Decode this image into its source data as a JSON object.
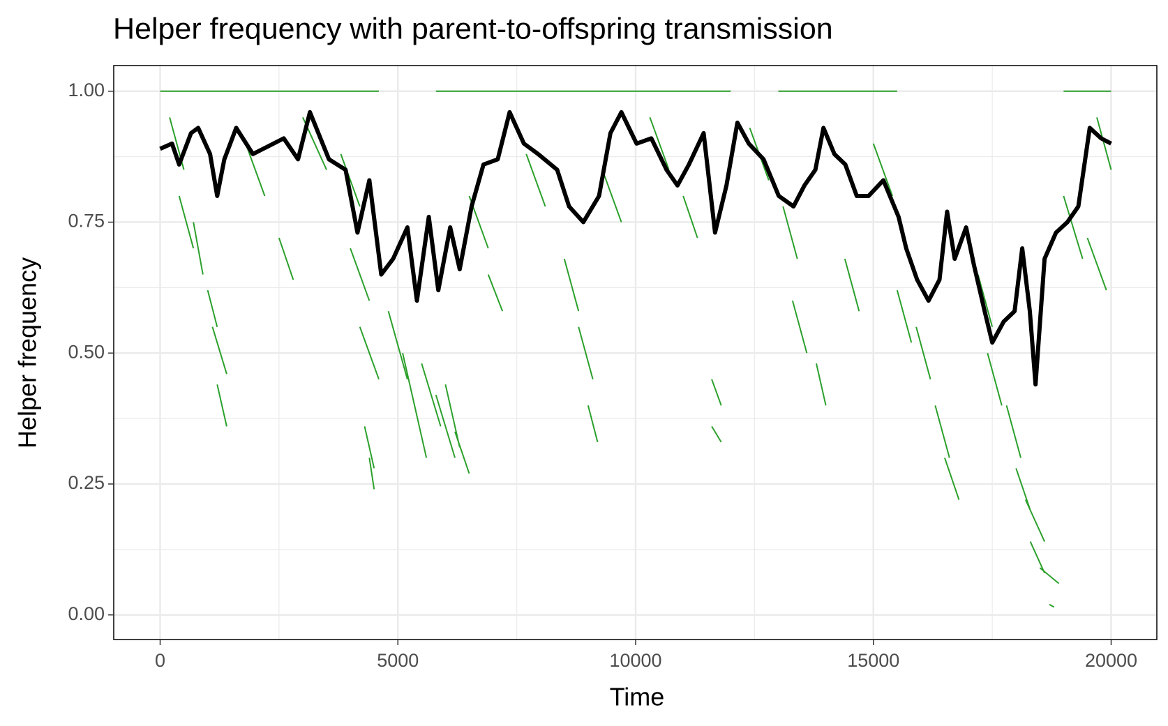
{
  "chart_data": {
    "type": "line",
    "title": "Helper frequency with parent-to-offspring transmission",
    "x_label": "Time",
    "y_label": "Helper frequency",
    "xlim": [
      -976,
      20961
    ],
    "ylim": [
      -0.047,
      1.049
    ],
    "xticks": [
      0,
      5000,
      10000,
      15000,
      20000
    ],
    "yticks": [
      {
        "value": 0,
        "label": "0.00"
      },
      0.25,
      {
        "value": 0.5,
        "label": "0.50"
      },
      0.75,
      {
        "value": 1,
        "label": "1.00"
      }
    ],
    "x_minor": [
      2500,
      7500,
      12500,
      17500
    ],
    "y_minor": [
      0.125,
      0.375,
      0.625,
      0.875
    ],
    "grid": true,
    "lines": [
      {
        "color": "#2ca02c",
        "width": 2,
        "x": [
          0,
          4600,
          null,
          5800,
          12000,
          null,
          13000,
          15500,
          null,
          19000,
          20000,
          null,
          200,
          500,
          null,
          400,
          700,
          null,
          700,
          900,
          null,
          1000,
          1200,
          null,
          1100,
          1400,
          null,
          1200,
          1400,
          null,
          1800,
          2200,
          null,
          2500,
          2800,
          null,
          3000,
          3500,
          null,
          3800,
          4200,
          null,
          4000,
          4400,
          null,
          4200,
          4600,
          null,
          4300,
          4500,
          null,
          4400,
          4500,
          null,
          4800,
          5200,
          null,
          5100,
          5400,
          null,
          5300,
          5600,
          null,
          5500,
          5900,
          null,
          5800,
          6200,
          null,
          6000,
          6300,
          null,
          6200,
          6500,
          null,
          6500,
          6900,
          null,
          6900,
          7200,
          null,
          7700,
          8100,
          null,
          8500,
          8800,
          null,
          8800,
          9100,
          null,
          9000,
          9200,
          null,
          9300,
          9700,
          null,
          10300,
          10700,
          null,
          11000,
          11300,
          null,
          11600,
          11800,
          null,
          11600,
          11800,
          null,
          12400,
          12800,
          null,
          13100,
          13400,
          null,
          13300,
          13600,
          null,
          13800,
          14000,
          null,
          14400,
          14700,
          null,
          15000,
          15400,
          null,
          15500,
          15800,
          null,
          15900,
          16200,
          null,
          16300,
          16600,
          null,
          16500,
          16800,
          null,
          17200,
          17500,
          null,
          17400,
          17700,
          null,
          17800,
          18100,
          null,
          18000,
          18300,
          null,
          18200,
          18600,
          null,
          18300,
          18600,
          null,
          18500,
          18900,
          null,
          18700,
          18800,
          null,
          19000,
          19400,
          null,
          19500,
          19900,
          null,
          19700,
          20000
        ],
        "y": [
          1,
          1,
          null,
          1,
          1,
          null,
          1,
          1,
          null,
          1,
          1,
          null,
          0.95,
          0.85,
          null,
          0.8,
          0.7,
          null,
          0.75,
          0.65,
          null,
          0.62,
          0.55,
          null,
          0.55,
          0.46,
          null,
          0.44,
          0.36,
          null,
          0.9,
          0.8,
          null,
          0.72,
          0.64,
          null,
          0.95,
          0.85,
          null,
          0.88,
          0.78,
          null,
          0.7,
          0.6,
          null,
          0.55,
          0.45,
          null,
          0.36,
          0.28,
          null,
          0.3,
          0.24,
          null,
          0.58,
          0.45,
          null,
          0.5,
          0.38,
          null,
          0.42,
          0.3,
          null,
          0.48,
          0.36,
          null,
          0.42,
          0.3,
          null,
          0.44,
          0.32,
          null,
          0.35,
          0.27,
          null,
          0.8,
          0.7,
          null,
          0.65,
          0.58,
          null,
          0.88,
          0.78,
          null,
          0.68,
          0.58,
          null,
          0.55,
          0.45,
          null,
          0.4,
          0.33,
          null,
          0.85,
          0.75,
          null,
          0.95,
          0.85,
          null,
          0.8,
          0.72,
          null,
          0.45,
          0.4,
          null,
          0.36,
          0.33,
          null,
          0.93,
          0.83,
          null,
          0.78,
          0.68,
          null,
          0.6,
          0.5,
          null,
          0.48,
          0.4,
          null,
          0.68,
          0.58,
          null,
          0.9,
          0.8,
          null,
          0.62,
          0.52,
          null,
          0.55,
          0.45,
          null,
          0.4,
          0.3,
          null,
          0.3,
          0.22,
          null,
          0.65,
          0.55,
          null,
          0.5,
          0.4,
          null,
          0.4,
          0.3,
          null,
          0.28,
          0.2,
          null,
          0.22,
          0.14,
          null,
          0.14,
          0.08,
          null,
          0.09,
          0.06,
          null,
          0.02,
          0.015,
          null,
          0.8,
          0.68,
          null,
          0.72,
          0.62,
          null,
          0.95,
          0.85
        ]
      },
      {
        "color": "#000000",
        "width": 6,
        "x": [
          0,
          250,
          400,
          650,
          800,
          1050,
          1200,
          1350,
          1600,
          1950,
          2600,
          2900,
          3150,
          3550,
          3900,
          4150,
          4400,
          4650,
          4900,
          5200,
          5400,
          5650,
          5850,
          6100,
          6300,
          6550,
          6800,
          7100,
          7350,
          7650,
          7950,
          8350,
          8600,
          8900,
          9230,
          9470,
          9700,
          10020,
          10330,
          10650,
          10880,
          11120,
          11430,
          11670,
          11910,
          12140,
          12380,
          12690,
          13010,
          13320,
          13550,
          13780,
          13950,
          14180,
          14410,
          14650,
          14900,
          15210,
          15530,
          15690,
          15920,
          16160,
          16390,
          16550,
          16710,
          16950,
          17110,
          17340,
          17500,
          17740,
          17970,
          18130,
          18290,
          18410,
          18600,
          18840,
          19080,
          19310,
          19550,
          19790,
          20000
        ],
        "y": [
          0.89,
          0.9,
          0.86,
          0.92,
          0.93,
          0.88,
          0.8,
          0.87,
          0.93,
          0.88,
          0.91,
          0.87,
          0.96,
          0.87,
          0.85,
          0.73,
          0.83,
          0.65,
          0.68,
          0.74,
          0.6,
          0.76,
          0.62,
          0.74,
          0.66,
          0.78,
          0.86,
          0.87,
          0.96,
          0.9,
          0.88,
          0.85,
          0.78,
          0.75,
          0.8,
          0.92,
          0.96,
          0.9,
          0.91,
          0.85,
          0.82,
          0.86,
          0.92,
          0.73,
          0.82,
          0.94,
          0.9,
          0.87,
          0.8,
          0.78,
          0.82,
          0.85,
          0.93,
          0.88,
          0.86,
          0.8,
          0.8,
          0.83,
          0.76,
          0.7,
          0.64,
          0.6,
          0.64,
          0.77,
          0.68,
          0.74,
          0.67,
          0.58,
          0.52,
          0.56,
          0.58,
          0.7,
          0.58,
          0.44,
          0.68,
          0.73,
          0.75,
          0.78,
          0.93,
          0.91,
          0.9
        ]
      }
    ]
  }
}
